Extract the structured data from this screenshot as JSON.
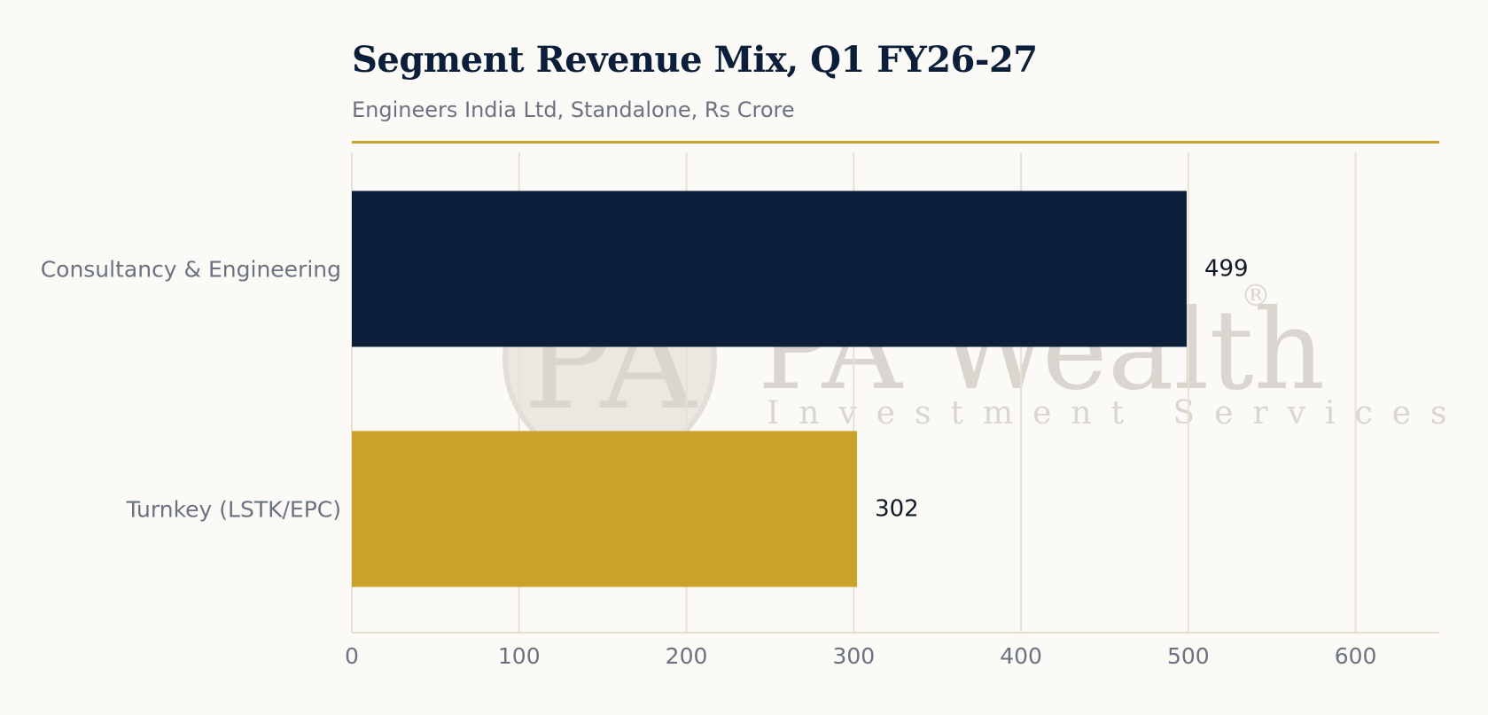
{
  "chart_data": {
    "type": "bar",
    "orientation": "horizontal",
    "title": "Segment Revenue Mix, Q1 FY26-27",
    "subtitle": "Engineers India Ltd, Standalone, Rs Crore",
    "categories": [
      "Consultancy & Engineering",
      "Turnkey (LSTK/EPC)"
    ],
    "values": [
      499,
      302
    ],
    "colors": [
      "#0b1f3a",
      "#c9a22a"
    ],
    "xlim": [
      0,
      650
    ],
    "xticks": [
      0,
      100,
      200,
      300,
      400,
      500,
      600
    ],
    "grid": true,
    "watermark": {
      "badge": "PA",
      "name": "PA Wealth",
      "tagline": "Investment Services",
      "mark": "®"
    }
  }
}
